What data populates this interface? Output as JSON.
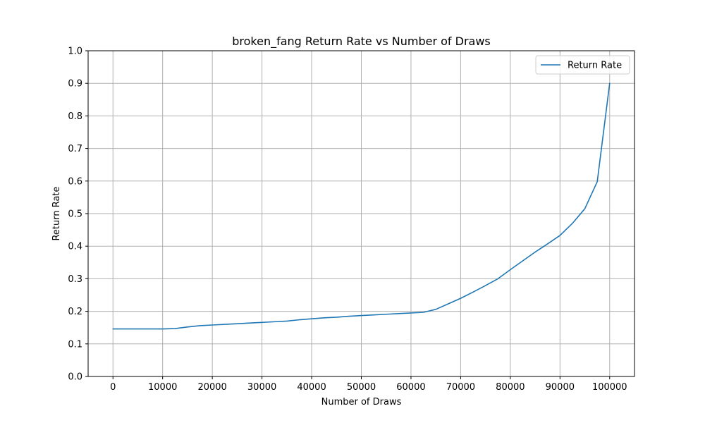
{
  "chart_data": {
    "type": "line",
    "title": "broken_fang Return Rate vs Number of Draws",
    "xlabel": "Number of Draws",
    "ylabel": "Return Rate",
    "xlim": [
      -5000,
      105000
    ],
    "ylim": [
      0,
      1.0
    ],
    "xticks": [
      0,
      10000,
      20000,
      30000,
      40000,
      50000,
      60000,
      70000,
      80000,
      90000,
      100000
    ],
    "xtick_labels": [
      "0",
      "10000",
      "20000",
      "30000",
      "40000",
      "50000",
      "60000",
      "70000",
      "80000",
      "90000",
      "100000"
    ],
    "yticks": [
      0,
      0.1,
      0.2,
      0.3,
      0.4,
      0.5,
      0.6,
      0.7,
      0.8,
      0.9,
      1.0
    ],
    "ytick_labels": [
      "0.0",
      "0.1",
      "0.2",
      "0.3",
      "0.4",
      "0.5",
      "0.6",
      "0.7",
      "0.8",
      "0.9",
      "1.0"
    ],
    "grid": true,
    "legend_position": "top-right",
    "series": [
      {
        "name": "Return Rate",
        "color": "#1f77b4",
        "x": [
          0,
          2500,
          5000,
          7500,
          10000,
          12500,
          15000,
          17500,
          20000,
          22500,
          25000,
          27500,
          30000,
          32500,
          35000,
          37500,
          40000,
          42500,
          45000,
          47500,
          50000,
          52500,
          55000,
          57500,
          60000,
          62500,
          65000,
          67500,
          70000,
          72500,
          75000,
          77500,
          80000,
          82500,
          85000,
          87500,
          90000,
          92500,
          95000,
          97500,
          100000
        ],
        "y": [
          0.146,
          0.146,
          0.146,
          0.146,
          0.146,
          0.147,
          0.152,
          0.156,
          0.158,
          0.16,
          0.162,
          0.164,
          0.166,
          0.168,
          0.17,
          0.174,
          0.177,
          0.18,
          0.182,
          0.185,
          0.187,
          0.189,
          0.191,
          0.193,
          0.195,
          0.197,
          0.206,
          0.223,
          0.24,
          0.259,
          0.279,
          0.3,
          0.328,
          0.355,
          0.382,
          0.407,
          0.433,
          0.47,
          0.515,
          0.598,
          0.9
        ]
      }
    ]
  }
}
